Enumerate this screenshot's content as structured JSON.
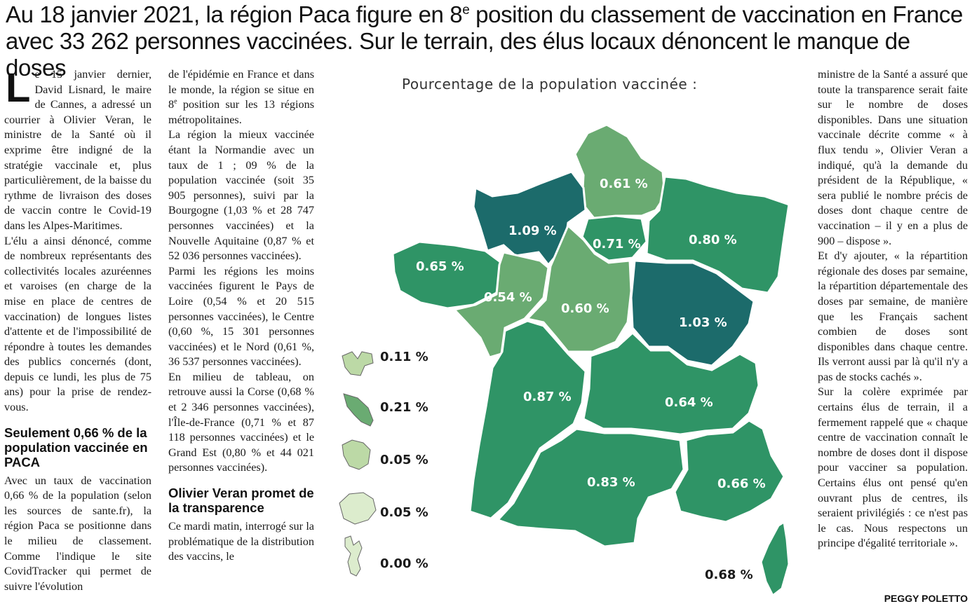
{
  "headline": {
    "part1": "Au 18 janvier 2021, la région Paca figure en 8",
    "sup": "e",
    "part2": " position du classement de vaccination en France avec 33 262 personnes vaccinées. Sur le terrain, des élus locaux dénoncent le manque de doses"
  },
  "col1": {
    "dropcap": "L",
    "p1": "e 15 janvier dernier, David Lisnard, le maire de Cannes, a adressé un courrier à Olivier Veran, le ministre de la Santé où il exprime être indigné de la stratégie vaccinale et, plus particulièrement, de la baisse du rythme de livraison des doses de vaccin contre le Covid-19 dans les Alpes-Maritimes.",
    "p2": "L'élu a ainsi dénoncé, comme de nombreux représentants des collectivités locales azuréennes et varoises (en charge de la mise en place de centres de vaccination) de longues listes d'attente et de l'impossibilité de répondre à toutes les demandes des publics concernés (dont, depuis ce lundi, les plus de 75 ans) pour la prise de rendez-vous.",
    "subhead": "Seulement 0,66 % de la population vaccinée en PACA",
    "p3": "Avec un taux de vaccination 0,66 % de la population (selon les sources de sante.fr), la région Paca se positionne dans le milieu de classement. Comme l'indique le site CovidTracker qui permet de suivre l'évolution"
  },
  "col2": {
    "p1a": "de l'épidémie en France et dans le monde, la région se situe en 8",
    "p1sup": "e",
    "p1b": " position sur les 13 régions métropolitaines.",
    "p2": "La région la mieux vaccinée étant la Normandie avec un taux de 1 ; 09 % de la population vaccinée (soit 35 905 personnes), suivi par la Bourgogne (1,03 % et 28 747 personnes vaccinées) et la Nouvelle Aquitaine (0,87 % et 52 036 personnes vaccinées).",
    "p3": "Parmi les régions les moins vaccinées figurent le Pays de Loire (0,54 % et 20 515 personnes vaccinées), le Centre (0,60 %, 15 301 personnes vaccinées) et le Nord (0,61 %, 36 537 personnes vaccinées).",
    "p4": "En milieu de tableau, on retrouve aussi la Corse (0,68 % et 2 346 personnes vaccinées), l'Île-de-France (0,71 % et 87 118 personnes vaccinées) et le Grand Est (0,80 % et 44 021 personnes vaccinées).",
    "subhead": "Olivier Veran promet de la transparence",
    "p5": "Ce mardi matin, interrogé sur la problématique de la distribution des vaccins, le"
  },
  "col3": {
    "p1": "ministre de la Santé a assuré que toute la transparence serait faite sur le nombre de doses disponibles. Dans une situation vaccinale décrite comme « à flux tendu », Olivier Veran a indiqué, qu'à la demande du président de la République, « sera publié le nombre précis de doses dont chaque centre de vaccination – il y en a plus de 900 – dispose ».",
    "p2": "Et d'y ajouter, « la répartition régionale des doses par semaine, la répartition départementale des doses par semaine, de manière que les Français sachent combien de doses sont disponibles dans chaque centre. Ils verront aussi par là qu'il n'y a pas de stocks cachés ».",
    "p3": "Sur la colère exprimée par certains élus de terrain, il a fermement rappelé que « chaque centre de vaccination connaît le nombre de doses dont il dispose pour vacciner sa population. Certains élus ont pensé qu'en ouvrant plus de centres, ils seraient privilégiés : ce n'est pas le cas. Nous respectons un principe d'égalité territoriale »."
  },
  "byline": "PEGGY POLETTO",
  "map": {
    "title": "Pourcentage de la population vaccinée :",
    "colors": {
      "dark": "#1c6b6b",
      "mid": "#2f9466",
      "light": "#6aab72",
      "pale": "#bcd9a6",
      "very_pale": "#dceccd"
    },
    "regions": [
      {
        "name": "Hauts-de-France",
        "label": "0.61 %",
        "color": "light"
      },
      {
        "name": "Normandie",
        "label": "1.09 %",
        "color": "dark"
      },
      {
        "name": "Île-de-France",
        "label": "0.71 %",
        "color": "mid"
      },
      {
        "name": "Grand Est",
        "label": "0.80 %",
        "color": "mid"
      },
      {
        "name": "Bretagne",
        "label": "0.65 %",
        "color": "mid"
      },
      {
        "name": "Pays de la Loire",
        "label": "0.54 %",
        "color": "light"
      },
      {
        "name": "Centre-Val de Loire",
        "label": "0.60 %",
        "color": "light"
      },
      {
        "name": "Bourgogne-Franche-Comté",
        "label": "1.03 %",
        "color": "dark"
      },
      {
        "name": "Nouvelle-Aquitaine",
        "label": "0.87 %",
        "color": "mid"
      },
      {
        "name": "Auvergne-Rhône-Alpes",
        "label": "0.64 %",
        "color": "mid"
      },
      {
        "name": "Occitanie",
        "label": "0.83 %",
        "color": "mid"
      },
      {
        "name": "Provence-Alpes-Côte d'Azur",
        "label": "0.66 %",
        "color": "mid"
      },
      {
        "name": "Corse",
        "label": "0.68 %",
        "color": "mid"
      }
    ],
    "overseas": [
      {
        "label": "0.11 %",
        "color": "pale"
      },
      {
        "label": "0.21 %",
        "color": "light"
      },
      {
        "label": "0.05 %",
        "color": "pale"
      },
      {
        "label": "0.05 %",
        "color": "very_pale"
      },
      {
        "label": "0.00 %",
        "color": "very_pale"
      }
    ]
  }
}
